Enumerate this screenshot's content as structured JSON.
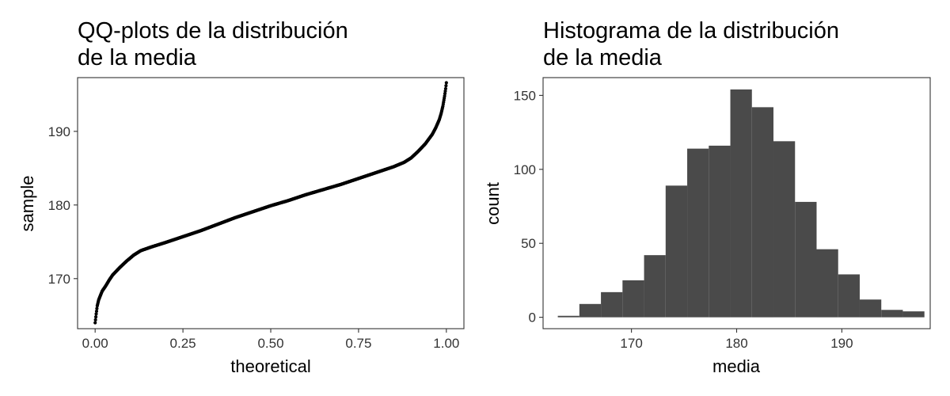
{
  "chart_data": [
    {
      "type": "scatter",
      "title": [
        "QQ-plots de la distribución",
        "de la media"
      ],
      "xlabel": "theoretical",
      "ylabel": "sample",
      "xlim": [
        -0.05,
        1.05
      ],
      "ylim": [
        163.2,
        197.3
      ],
      "xticks": [
        0.0,
        0.25,
        0.5,
        0.75,
        1.0
      ],
      "xtick_labels": [
        "0.00",
        "0.25",
        "0.50",
        "0.75",
        "1.00"
      ],
      "yticks": [
        170,
        180,
        190
      ],
      "ytick_labels": [
        "170",
        "180",
        "190"
      ],
      "grid": false,
      "legend": "none",
      "point_color": "#000000",
      "curve": [
        [
          0.0,
          164.0
        ],
        [
          0.003,
          165.2
        ],
        [
          0.006,
          166.3
        ],
        [
          0.01,
          167.1
        ],
        [
          0.015,
          167.7
        ],
        [
          0.02,
          168.3
        ],
        [
          0.03,
          169.0
        ],
        [
          0.04,
          169.8
        ],
        [
          0.05,
          170.5
        ],
        [
          0.07,
          171.5
        ],
        [
          0.09,
          172.4
        ],
        [
          0.11,
          173.2
        ],
        [
          0.13,
          173.8
        ],
        [
          0.16,
          174.3
        ],
        [
          0.2,
          174.9
        ],
        [
          0.25,
          175.7
        ],
        [
          0.3,
          176.5
        ],
        [
          0.35,
          177.4
        ],
        [
          0.4,
          178.3
        ],
        [
          0.45,
          179.1
        ],
        [
          0.5,
          179.9
        ],
        [
          0.55,
          180.6
        ],
        [
          0.6,
          181.4
        ],
        [
          0.65,
          182.1
        ],
        [
          0.7,
          182.8
        ],
        [
          0.75,
          183.6
        ],
        [
          0.8,
          184.4
        ],
        [
          0.85,
          185.2
        ],
        [
          0.88,
          185.8
        ],
        [
          0.9,
          186.4
        ],
        [
          0.92,
          187.3
        ],
        [
          0.94,
          188.3
        ],
        [
          0.96,
          189.6
        ],
        [
          0.97,
          190.5
        ],
        [
          0.98,
          191.6
        ],
        [
          0.985,
          192.4
        ],
        [
          0.99,
          193.4
        ],
        [
          0.995,
          194.8
        ],
        [
          0.998,
          195.8
        ],
        [
          1.0,
          196.6
        ]
      ]
    },
    {
      "type": "bar",
      "title": [
        "Histograma de la distribución",
        "de la media"
      ],
      "xlabel": "media",
      "ylabel": "count",
      "xlim": [
        161.6,
        198.4
      ],
      "ylim": [
        -7.7,
        162.0
      ],
      "xticks": [
        170,
        180,
        190
      ],
      "xtick_labels": [
        "170",
        "180",
        "190"
      ],
      "yticks": [
        0,
        50,
        100,
        150
      ],
      "ytick_labels": [
        "0",
        "50",
        "100",
        "150"
      ],
      "grid": false,
      "legend": "none",
      "bar_color": "#4a4a4a",
      "bin_width": 2.05,
      "bins": [
        {
          "start": 163.0,
          "count": 1
        },
        {
          "start": 165.05,
          "count": 9
        },
        {
          "start": 167.1,
          "count": 17
        },
        {
          "start": 169.15,
          "count": 25
        },
        {
          "start": 171.2,
          "count": 42
        },
        {
          "start": 173.25,
          "count": 89
        },
        {
          "start": 175.3,
          "count": 114
        },
        {
          "start": 177.35,
          "count": 116
        },
        {
          "start": 179.4,
          "count": 154
        },
        {
          "start": 181.45,
          "count": 142
        },
        {
          "start": 183.5,
          "count": 119
        },
        {
          "start": 185.55,
          "count": 78
        },
        {
          "start": 187.6,
          "count": 46
        },
        {
          "start": 189.65,
          "count": 29
        },
        {
          "start": 191.7,
          "count": 12
        },
        {
          "start": 193.75,
          "count": 5
        },
        {
          "start": 195.8,
          "count": 4
        }
      ]
    }
  ]
}
